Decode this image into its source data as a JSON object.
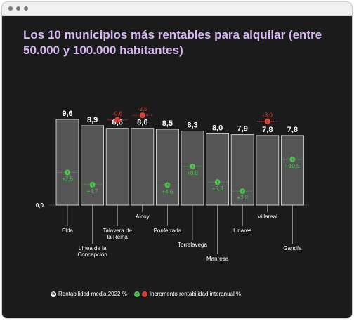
{
  "chart_data": {
    "type": "bar",
    "title": "Los 10 municipios más rentables para alquilar (entre 50.000 y 100.000 habitantes)",
    "categories": [
      "Elda",
      "Línea de la Concepción",
      "Talavera de la Reina",
      "Alcoy",
      "Ponferrada",
      "Torrelavega",
      "Manresa",
      "Linares",
      "Villareal",
      "Gandía"
    ],
    "value_labels": [
      "9,6",
      "8,9",
      "8,6",
      "8,6",
      "8,5",
      "8,3",
      "8,0",
      "7,9",
      "7,8",
      "7,8"
    ],
    "values": [
      9.6,
      8.9,
      8.6,
      8.6,
      8.5,
      8.3,
      8.0,
      7.9,
      7.8,
      7.8
    ],
    "change_labels": [
      "+7,5",
      "+4,7",
      "-0,6",
      "-2,5",
      "+4,6",
      "+8,9",
      "+5,3",
      "+3,2",
      "-3,0",
      "+10,5"
    ],
    "change": [
      7.5,
      4.7,
      -0.6,
      -2.5,
      4.6,
      8.9,
      5.3,
      3.2,
      -3.0,
      10.5
    ],
    "y_zero_label": "0,0",
    "legend": {
      "primary": "Rentabilidad media 2022 %",
      "secondary": "Incremento rentabilidad interanual %"
    },
    "colors": {
      "bar": "#555555",
      "bar_border": "#d9d9d9",
      "positive": "#4fbf4f",
      "negative": "#e2433b",
      "title": "#d7b8f3",
      "background": "#1b1b1b"
    }
  }
}
